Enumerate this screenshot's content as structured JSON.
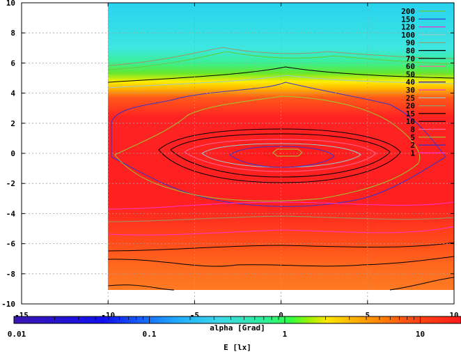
{
  "chart_data": {
    "type": "heatmap",
    "title": "",
    "xlabel": "alpha [Grad]",
    "ylabel": "",
    "xlim": [
      -15,
      10
    ],
    "ylim": [
      -10,
      10
    ],
    "x_ticks": [
      -15,
      -10,
      -5,
      0,
      5,
      10
    ],
    "y_ticks": [
      10,
      8,
      6,
      4,
      2,
      0,
      -2,
      -4,
      -6,
      -8,
      -10
    ],
    "grid": true,
    "data_extent": {
      "x": [
        -10,
        10
      ],
      "y": [
        -9.2,
        9.6
      ]
    },
    "colorbar": {
      "label": "E [lx]",
      "scale": "log",
      "range": [
        0.01,
        20
      ],
      "tick_labels": [
        "0.01",
        "0.1",
        "1",
        "10"
      ],
      "tick_values": [
        0.01,
        0.1,
        1,
        10
      ]
    },
    "legend_position": "top-right",
    "contour_levels": [
      {
        "level": "200",
        "color": "#66cc33"
      },
      {
        "level": "150",
        "color": "#3333cc"
      },
      {
        "level": "120",
        "color": "#ff33cc"
      },
      {
        "level": "100",
        "color": "#99cccc"
      },
      {
        "level": "90",
        "color": "#999966"
      },
      {
        "level": "80",
        "color": "#000000"
      },
      {
        "level": "70",
        "color": "#000000"
      },
      {
        "level": "60",
        "color": "#ff6699"
      },
      {
        "level": "50",
        "color": "#99cc33"
      },
      {
        "level": "40",
        "color": "#330099"
      },
      {
        "level": "30",
        "color": "#ff33cc"
      },
      {
        "level": "25",
        "color": "#99cccc"
      },
      {
        "level": "20",
        "color": "#999966"
      },
      {
        "level": "15",
        "color": "#000000"
      },
      {
        "level": "10",
        "color": "#000000"
      },
      {
        "level": "8",
        "color": "#ff6699"
      },
      {
        "level": "5",
        "color": "#99cc33"
      },
      {
        "level": "2",
        "color": "#3333cc"
      },
      {
        "level": "1",
        "color": "#ff33cc"
      }
    ]
  }
}
